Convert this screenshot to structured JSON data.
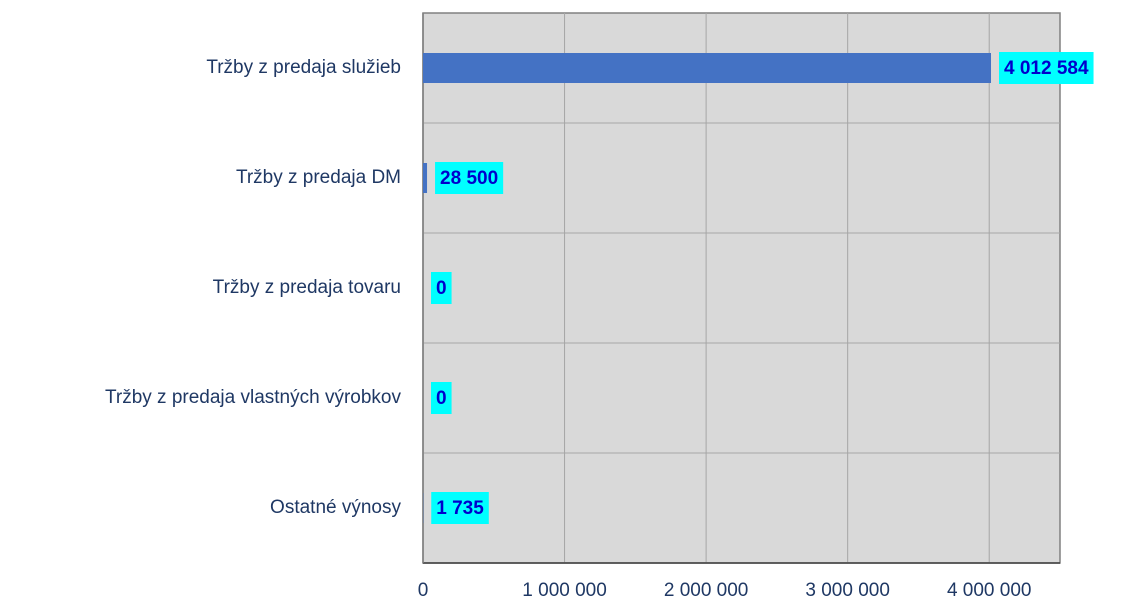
{
  "chart_data": {
    "type": "barh",
    "categories": [
      "Tržby z predaja služieb",
      "Tržby z predaja DM",
      "Tržby z predaja tovaru",
      "Tržby z predaja vlastných výrobkov",
      "Ostatné výnosy"
    ],
    "values": [
      4012584,
      28500,
      0,
      0,
      1735
    ],
    "value_labels": [
      "4 012 584",
      "28 500",
      "0",
      "0",
      "1 735"
    ],
    "color": "#4472c4",
    "xlim": [
      0,
      4500000
    ],
    "xticks": [
      0,
      {
        "value": 1000000,
        "label": "1 000 000"
      },
      {
        "value": 2000000,
        "label": "2 000 000"
      },
      {
        "value": 3000000,
        "label": "3 000 000"
      },
      {
        "value": 4000000,
        "label": "4 000 000"
      }
    ],
    "grid": true
  }
}
